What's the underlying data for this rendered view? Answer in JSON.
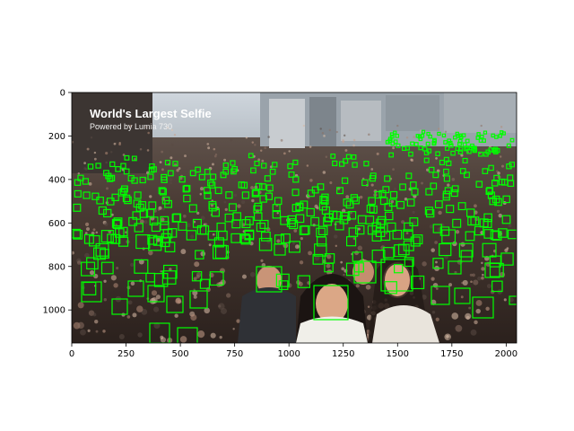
{
  "image": {
    "caption_title": "World's Largest Selfie",
    "caption_subtitle": "Powered by Lumia 730",
    "box_color": "#00ff00"
  },
  "axes": {
    "x_ticks": [
      0,
      250,
      500,
      750,
      1000,
      1250,
      1500,
      1750,
      2000
    ],
    "y_ticks": [
      0,
      200,
      400,
      600,
      800,
      1000
    ],
    "x_range": [
      0,
      2048
    ],
    "y_range": [
      1152,
      0
    ]
  },
  "detections_shown": "hundreds of green face bounding boxes"
}
